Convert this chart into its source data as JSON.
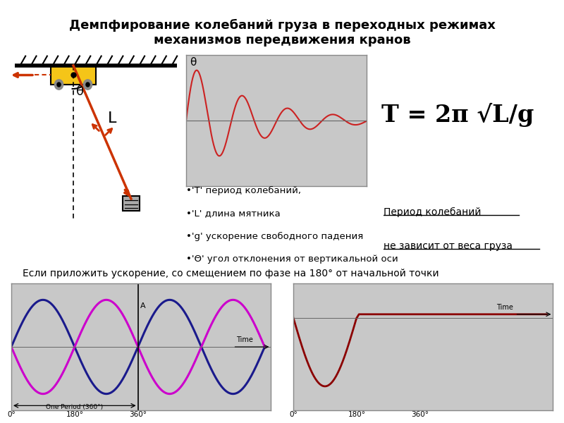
{
  "title": "Демпфирование колебаний груза в переходных режимах\nмеханизмов передвижения кранов",
  "title_fontsize": 13,
  "white_bg": "#ffffff",
  "panel_bg": "#c8c8c8",
  "subtitle_text": "Если приложить ускорение, со смещением по фазе на 180° от начальной точки",
  "bullet_lines": [
    "•'T' период колебаний,",
    "•'L' длина мятника",
    "•'g' ускорение свободного падения",
    "•'Θ' угол отклонения от вертикальной оси"
  ],
  "underline_text1": "Период колебаний",
  "underline_text2": "не зависит от веса груза",
  "damped_color": "#cc2222",
  "sine_blue": "#1a1a8c",
  "sine_magenta": "#cc00cc",
  "result_color": "#8b0000"
}
